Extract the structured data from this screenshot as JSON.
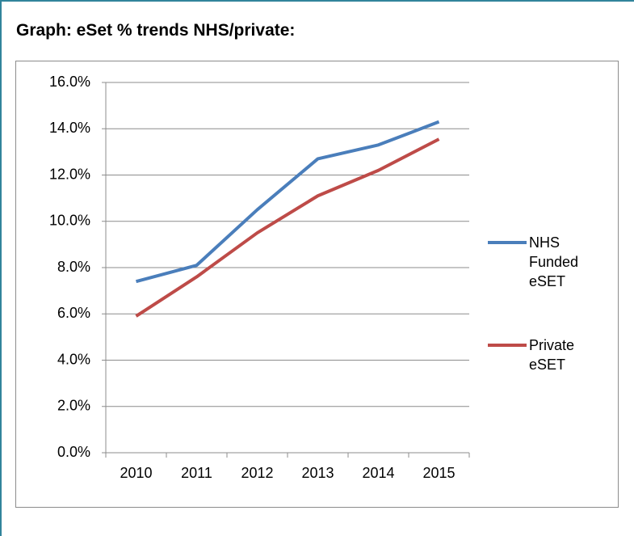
{
  "chart_data": {
    "type": "line",
    "title": "Graph: eSet % trends NHS/private:",
    "categories": [
      "2010",
      "2011",
      "2012",
      "2013",
      "2014",
      "2015"
    ],
    "series": [
      {
        "name": "NHS Funded eSET",
        "color": "#4a7ebb",
        "values": [
          7.4,
          8.1,
          10.5,
          12.7,
          13.3,
          14.3
        ]
      },
      {
        "name": "Private eSET",
        "color": "#be4b48",
        "values": [
          5.9,
          7.6,
          9.5,
          11.1,
          12.2,
          13.55
        ]
      }
    ],
    "ylim": [
      0,
      16
    ],
    "yticks": [
      {
        "value": 0,
        "label": "0.0%"
      },
      {
        "value": 2,
        "label": "2.0%"
      },
      {
        "value": 4,
        "label": "4.0%"
      },
      {
        "value": 6,
        "label": "6.0%"
      },
      {
        "value": 8,
        "label": "8.0%"
      },
      {
        "value": 10,
        "label": "10.0%"
      },
      {
        "value": 12,
        "label": "12.0%"
      },
      {
        "value": 14,
        "label": "14.0%"
      },
      {
        "value": 16,
        "label": "16.0%"
      }
    ],
    "grid": true,
    "legend": "right"
  }
}
